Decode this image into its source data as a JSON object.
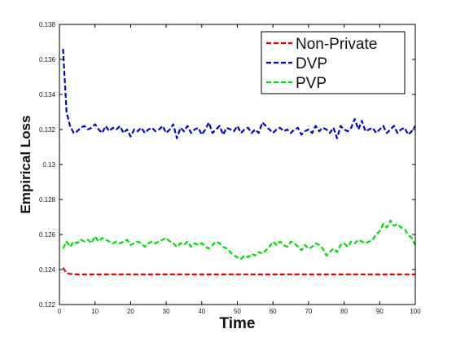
{
  "chart_data": {
    "type": "line",
    "title": "",
    "xlabel": "Time",
    "ylabel": "Empirical Loss",
    "xlim": [
      0,
      100
    ],
    "ylim": [
      0.122,
      0.138
    ],
    "x_ticks": [
      0,
      10,
      20,
      30,
      40,
      50,
      60,
      70,
      80,
      90,
      100
    ],
    "x_tick_labels": [
      "0",
      "10",
      "20",
      "30",
      "40",
      "50",
      "60",
      "70",
      "80",
      "90",
      "100"
    ],
    "y_ticks": [
      0.122,
      0.124,
      0.126,
      0.128,
      0.13,
      0.132,
      0.134,
      0.136,
      0.138
    ],
    "y_tick_labels": [
      "0.122",
      "0.124",
      "0.126",
      "0.128",
      "0.13",
      "0.132",
      "0.134",
      "0.136",
      "0.138"
    ],
    "grid": false,
    "legend_position": "top-right",
    "x": [
      1,
      2,
      3,
      4,
      5,
      6,
      7,
      8,
      9,
      10,
      11,
      12,
      13,
      14,
      15,
      16,
      17,
      18,
      19,
      20,
      21,
      22,
      23,
      24,
      25,
      26,
      27,
      28,
      29,
      30,
      31,
      32,
      33,
      34,
      35,
      36,
      37,
      38,
      39,
      40,
      41,
      42,
      43,
      44,
      45,
      46,
      47,
      48,
      49,
      50,
      51,
      52,
      53,
      54,
      55,
      56,
      57,
      58,
      59,
      60,
      61,
      62,
      63,
      64,
      65,
      66,
      67,
      68,
      69,
      70,
      71,
      72,
      73,
      74,
      75,
      76,
      77,
      78,
      79,
      80,
      81,
      82,
      83,
      84,
      85,
      86,
      87,
      88,
      89,
      90,
      91,
      92,
      93,
      94,
      95,
      96,
      97,
      98,
      99,
      100
    ],
    "series": [
      {
        "name": "Non-Private",
        "color": "#e00000",
        "values": [
          0.1241,
          0.1238,
          0.12375,
          0.12373,
          0.12372,
          0.12372,
          0.12372,
          0.12372,
          0.12372,
          0.12372,
          0.12372,
          0.12372,
          0.12372,
          0.12372,
          0.12372,
          0.12372,
          0.12372,
          0.12372,
          0.12372,
          0.12372,
          0.12372,
          0.12372,
          0.12372,
          0.12372,
          0.12372,
          0.12372,
          0.12372,
          0.12372,
          0.12372,
          0.12372,
          0.12372,
          0.12372,
          0.12372,
          0.12372,
          0.12372,
          0.12372,
          0.12372,
          0.12372,
          0.12372,
          0.12372,
          0.12372,
          0.12372,
          0.12372,
          0.12372,
          0.12372,
          0.12372,
          0.12372,
          0.12372,
          0.12372,
          0.12372,
          0.12372,
          0.12372,
          0.12372,
          0.12372,
          0.12372,
          0.12372,
          0.12372,
          0.12372,
          0.12372,
          0.12372,
          0.12372,
          0.12372,
          0.12372,
          0.12372,
          0.12372,
          0.12372,
          0.12372,
          0.12372,
          0.12372,
          0.12372,
          0.12372,
          0.12372,
          0.12372,
          0.12372,
          0.12372,
          0.12372,
          0.12372,
          0.12372,
          0.12372,
          0.12372,
          0.12372,
          0.12372,
          0.12372,
          0.12372,
          0.12372,
          0.12372,
          0.12372,
          0.12372,
          0.12372,
          0.12372,
          0.12372,
          0.12372,
          0.12372,
          0.12372,
          0.12372,
          0.12372,
          0.12372,
          0.12372,
          0.12372,
          0.12372
        ]
      },
      {
        "name": "DVP",
        "color": "#0000cc",
        "values": [
          0.1366,
          0.133,
          0.1322,
          0.1318,
          0.1319,
          0.1321,
          0.1322,
          0.132,
          0.1321,
          0.1323,
          0.132,
          0.1318,
          0.1322,
          0.1319,
          0.1321,
          0.132,
          0.1322,
          0.1318,
          0.132,
          0.1316,
          0.132,
          0.1319,
          0.1321,
          0.1318,
          0.132,
          0.1321,
          0.1319,
          0.132,
          0.1322,
          0.1318,
          0.132,
          0.1323,
          0.1315,
          0.1321,
          0.1319,
          0.1322,
          0.1318,
          0.132,
          0.1321,
          0.1317,
          0.132,
          0.1324,
          0.1318,
          0.132,
          0.1322,
          0.1317,
          0.1321,
          0.132,
          0.1319,
          0.1322,
          0.1318,
          0.132,
          0.1321,
          0.1318,
          0.132,
          0.1318,
          0.1324,
          0.1322,
          0.132,
          0.1318,
          0.132,
          0.1321,
          0.1319,
          0.132,
          0.1318,
          0.132,
          0.1321,
          0.1317,
          0.1319,
          0.132,
          0.1318,
          0.1322,
          0.1319,
          0.1321,
          0.132,
          0.1318,
          0.1321,
          0.1315,
          0.1322,
          0.132,
          0.1319,
          0.1321,
          0.1326,
          0.132,
          0.1325,
          0.1319,
          0.132,
          0.1321,
          0.1318,
          0.132,
          0.1322,
          0.1318,
          0.132,
          0.1322,
          0.1318,
          0.132,
          0.1321,
          0.1317,
          0.1319,
          0.1322
        ]
      },
      {
        "name": "PVP",
        "color": "#00dd00",
        "values": [
          0.1252,
          0.1256,
          0.1253,
          0.1256,
          0.1255,
          0.1257,
          0.1256,
          0.1257,
          0.1255,
          0.1259,
          0.1256,
          0.1258,
          0.1257,
          0.1256,
          0.1255,
          0.1256,
          0.1255,
          0.1256,
          0.1257,
          0.1254,
          0.1255,
          0.1256,
          0.1255,
          0.1253,
          0.1255,
          0.1256,
          0.1255,
          0.1256,
          0.1257,
          0.1258,
          0.1256,
          0.1255,
          0.1253,
          0.1255,
          0.1254,
          0.1256,
          0.1253,
          0.1255,
          0.1254,
          0.1255,
          0.1253,
          0.1252,
          0.1254,
          0.1256,
          0.1255,
          0.1253,
          0.1252,
          0.125,
          0.1248,
          0.1247,
          0.1246,
          0.1248,
          0.1247,
          0.1249,
          0.1248,
          0.125,
          0.1249,
          0.1251,
          0.1253,
          0.1256,
          0.1254,
          0.1256,
          0.1254,
          0.1253,
          0.1256,
          0.1255,
          0.1253,
          0.1251,
          0.1254,
          0.1252,
          0.1253,
          0.1255,
          0.1254,
          0.1252,
          0.1248,
          0.125,
          0.1252,
          0.125,
          0.1254,
          0.1255,
          0.1253,
          0.1256,
          0.1255,
          0.1257,
          0.1256,
          0.1255,
          0.1256,
          0.1257,
          0.126,
          0.1262,
          0.1266,
          0.1264,
          0.1268,
          0.1265,
          0.1266,
          0.1264,
          0.1263,
          0.126,
          0.1258,
          0.1254
        ]
      }
    ]
  }
}
